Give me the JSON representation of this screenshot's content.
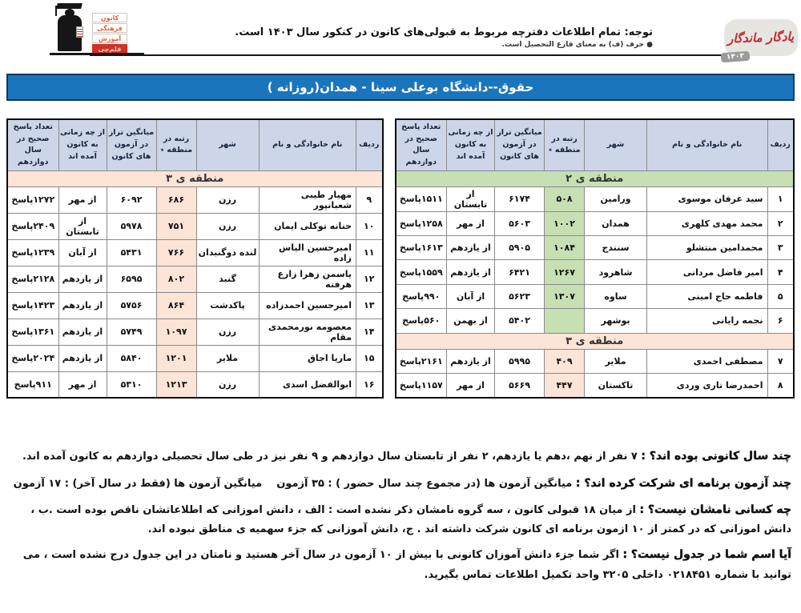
{
  "header": {
    "logo_lines": [
      "کانون",
      "فرهنگی",
      "آموزش",
      "قلم‌چی"
    ],
    "notice_bold": "توجه: تمام اطلاعات دفترچه مربوط به قبولی‌های کانون در کنکور سال ۱۴۰۳ است.",
    "notice_small": "● حرف (ف) به معنای فارغ التحصیل است.",
    "brand_title": "یادگار ماندگار",
    "brand_year": "۱۴۰۳"
  },
  "title_bar": {
    "text": "حقوق--دانشگاه بوعلی سینا - همدان(روزانه )"
  },
  "columns": [
    "ردیف",
    "نام خانوادگی و نام",
    "شهر",
    "رتبه در منطقه ٭",
    "میانگین تراز در آزمون های کانون",
    "از چه زمانی به کانون آمده اند",
    "تعداد پاسخ صحیح در سال دوازدهم"
  ],
  "table_first": {
    "sections": [
      {
        "label": "منطقه ی ۲",
        "tone": "green",
        "rows": [
          {
            "num": "۱",
            "name": "سید عرفان موسوی",
            "city": "ورامین",
            "rank": "۵۰۸",
            "score": "۶۱۷۴",
            "since": "از تابستان",
            "answers": "۱۵۱۱پاسخ"
          },
          {
            "num": "۲",
            "name": "محمد مهدی کلهری",
            "city": "همدان",
            "rank": "۱۰۰۲",
            "score": "۵۶۰۳",
            "since": "از مهر",
            "answers": "۱۲۵۸پاسخ"
          },
          {
            "num": "۳",
            "name": "محمدامین منتشلو",
            "city": "سنندج",
            "rank": "۱۰۸۴",
            "score": "۵۹۰۵",
            "since": "از یازدهم",
            "answers": "۱۶۱۳پاسخ"
          },
          {
            "num": "۴",
            "name": "امیر فاضل مردانی",
            "city": "شاهرود",
            "rank": "۱۲۶۷",
            "score": "۶۴۲۱",
            "since": "از یازدهم",
            "answers": "۱۵۵۹پاسخ"
          },
          {
            "num": "۵",
            "name": "فاطمه حاج امینی",
            "city": "ساوه",
            "rank": "۱۳۰۷",
            "score": "۵۶۲۳",
            "since": "از آبان",
            "answers": "۹۹۰پاسخ"
          },
          {
            "num": "۶",
            "name": "نجمه رایانی",
            "city": "بوشهر",
            "rank": "",
            "score": "۵۴۰۲",
            "since": "از بهمن",
            "answers": "۵۶۰پاسخ"
          }
        ]
      },
      {
        "label": "منطقه ی ۳",
        "tone": "peach",
        "rows": [
          {
            "num": "۷",
            "name": "مصطفی احمدی",
            "city": "ملایر",
            "rank": "۴۰۹",
            "score": "۵۹۹۵",
            "since": "از یازدهم",
            "answers": "۲۱۶۱پاسخ"
          },
          {
            "num": "۸",
            "name": "احمدرضا تاری وردی",
            "city": "تاکستان",
            "rank": "۴۴۷",
            "score": "۵۶۶۹",
            "since": "از مهر",
            "answers": "۱۱۵۷پاسخ"
          }
        ]
      }
    ]
  },
  "table_second": {
    "sections": [
      {
        "label": "منطقه ی ۳",
        "tone": "peach",
        "rows": [
          {
            "num": "۹",
            "name": "مهیار طیبی شعبانپور",
            "city": "رزن",
            "rank": "۶۸۶",
            "score": "۶۰۹۲",
            "since": "از مهر",
            "answers": "۱۲۷۲پاسخ"
          },
          {
            "num": "۱۰",
            "name": "حنانه توکلی ایمان",
            "city": "رزن",
            "rank": "۷۵۱",
            "score": "۵۹۷۸",
            "since": "از تابستان",
            "answers": "۲۴۰۹پاسخ"
          },
          {
            "num": "۱۱",
            "name": "امیرحسین الیاس زاده",
            "city": "لنده دوگنبدان",
            "rank": "۷۶۶",
            "score": "۵۴۳۱",
            "since": "از آبان",
            "answers": "۱۲۳۹پاسخ"
          },
          {
            "num": "۱۲",
            "name": "یاسمن زهرا زارع هرفته",
            "city": "گنبد",
            "rank": "۸۰۲",
            "score": "۶۵۹۵",
            "since": "از یازدهم",
            "answers": "۲۱۲۸پاسخ"
          },
          {
            "num": "۱۳",
            "name": "امیرحسین احمدزاده",
            "city": "پاکدشت",
            "rank": "۸۶۴",
            "score": "۵۷۵۶",
            "since": "از یازدهم",
            "answers": "۱۴۲۳پاسخ"
          },
          {
            "num": "۱۴",
            "name": "معصومه نورمحمدی مقام",
            "city": "رزن",
            "rank": "۱۰۹۷",
            "score": "۵۷۴۹",
            "since": "از یازدهم",
            "answers": "۱۳۶۱پاسخ"
          },
          {
            "num": "۱۵",
            "name": "ماریا اجاق",
            "city": "ملایر",
            "rank": "۱۲۰۱",
            "score": "۵۸۴۰",
            "since": "از یازدهم",
            "answers": "۲۰۲۴پاسخ"
          },
          {
            "num": "۱۶",
            "name": "ابوالفضل اسدی",
            "city": "رزن",
            "rank": "۱۲۱۳",
            "score": "۵۳۱۰",
            "since": "از مهر",
            "answers": "۹۱۱پاسخ"
          }
        ]
      }
    ]
  },
  "notes": [
    {
      "q": "چند سال کانونی بوده اند؟ :",
      "a": "۷ نفر از نهم ،دهم یا یازدهم، ۲ نفر از تابستان سال دوازدهم و ۹ نفر نیز در طی سال تحصیلی دوازدهم به کانون آمده اند."
    },
    {
      "q": "چند آزمون برنامه ای شرکت کرده اند؟ :",
      "a": "میانگین آزمون ها (در مجموع چند سال حضور ) : ۳۵ آزمون    میانگین آزمون ها (فقط در سال آخر) : ۱۷ آزمون"
    },
    {
      "q": "چه کسانی نامشان نیست؟ :",
      "a": "از میان ۱۸ قبولی کانون ، سه گروه نامشان ذکر نشده است : الف ، دانش اموزانی که اطلاعاتشان ناقص بوده است .ب ، دانش اموزانی که در کمتر از ۱۰ ازمون برنامه ای کانون شرکت داشته اند . ج، دانش آموزانی که جزء سهمیه ی مناطق نبوده اند."
    },
    {
      "q": "آیا اسم شما در جدول نیست؟ :",
      "a": "اگر شما جزء دانش آموزان کانونی با بیش از ۱۰ آزمون در سال آخر هستید و نامتان در این جدول درج نشده است ، می توانید با شماره ۰۲۱۸۴۵۱ داخلی ۳۲۰۵ واحد تکمیل اطلاعات تماس بگیرید."
    }
  ],
  "colors": {
    "bar_blue": "#1b75bc",
    "band_green": "#c6e0b4",
    "band_peach": "#fce4d6",
    "header_cell": "#ccd6e8",
    "brand_red": "#c1272d",
    "badge_gray": "#9a9a9a"
  }
}
